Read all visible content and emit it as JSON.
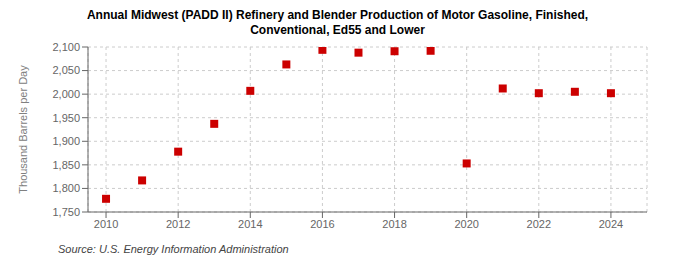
{
  "chart_data": {
    "type": "scatter",
    "title": "Annual Midwest (PADD II) Refinery and Blender Production of Motor Gasoline, Finished,\nConventional, Ed55 and Lower",
    "y_label": "Thousand Barrels per Day",
    "annotations": [
      "Source: U.S. Energy Information Administration"
    ],
    "x": [
      2010,
      2011,
      2012,
      2013,
      2014,
      2015,
      2016,
      2017,
      2018,
      2019,
      2020,
      2021,
      2022,
      2023,
      2024
    ],
    "values": [
      1778,
      1817,
      1878,
      1937,
      2007,
      2063,
      2094,
      2088,
      2091,
      2092,
      1853,
      2012,
      2002,
      2005,
      2002
    ],
    "color": "#cc0000",
    "marker": "square",
    "xlim": [
      2009.5,
      2025.0
    ],
    "xticks": [
      2010,
      2012,
      2014,
      2016,
      2018,
      2020,
      2022,
      2024
    ],
    "ylim": [
      1750,
      2100
    ],
    "yticks": [
      {
        "value": 1750,
        "label": "1,750"
      },
      {
        "value": 1800,
        "label": "1,800"
      },
      {
        "value": 1850,
        "label": "1,850"
      },
      {
        "value": 1900,
        "label": "1,900"
      },
      {
        "value": 1950,
        "label": "1,950"
      },
      {
        "value": 2000,
        "label": "2,000"
      },
      {
        "value": 2050,
        "label": "2,050"
      },
      {
        "value": 2100,
        "label": "2,100"
      }
    ],
    "grid": true
  }
}
